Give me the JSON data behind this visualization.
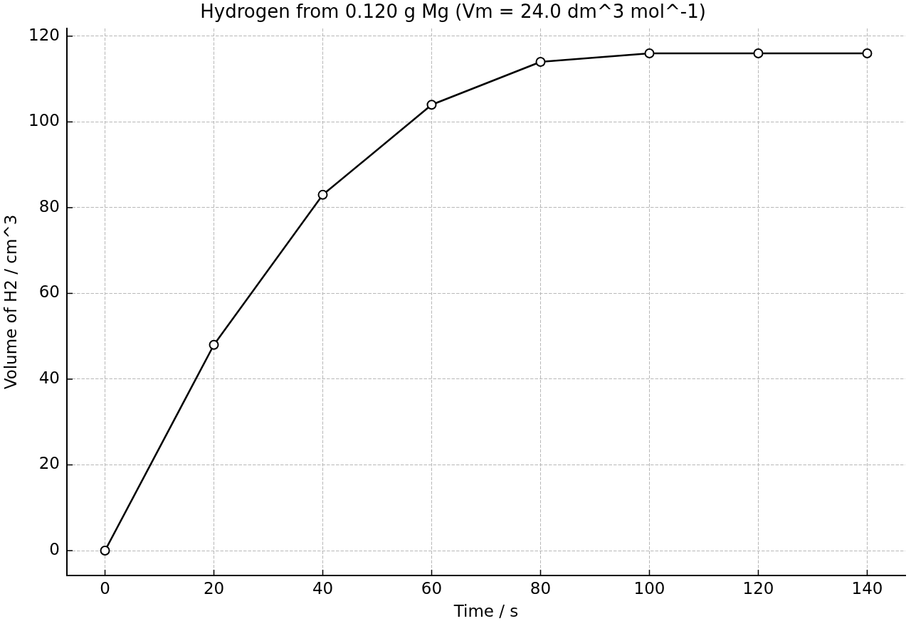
{
  "chart_data": {
    "type": "line",
    "title": "Hydrogen from 0.120 g Mg (Vm = 24.0 dm^3 mol^-1)",
    "xlabel": "Time / s",
    "ylabel": "Volume of H2 / cm^3",
    "x": [
      0,
      20,
      40,
      60,
      80,
      100,
      120,
      140
    ],
    "series": [
      {
        "color": "#000000",
        "values": [
          0,
          48,
          83,
          104,
          114,
          116,
          116,
          116
        ]
      }
    ],
    "xlim": [
      -7,
      147
    ],
    "ylim": [
      -5.8,
      121.8
    ],
    "xticks": [
      0,
      20,
      40,
      60,
      80,
      100,
      120,
      140
    ],
    "yticks": [
      0,
      20,
      40,
      60,
      80,
      100,
      120
    ],
    "grid": true,
    "marker": "circle",
    "line_style": "solid"
  }
}
